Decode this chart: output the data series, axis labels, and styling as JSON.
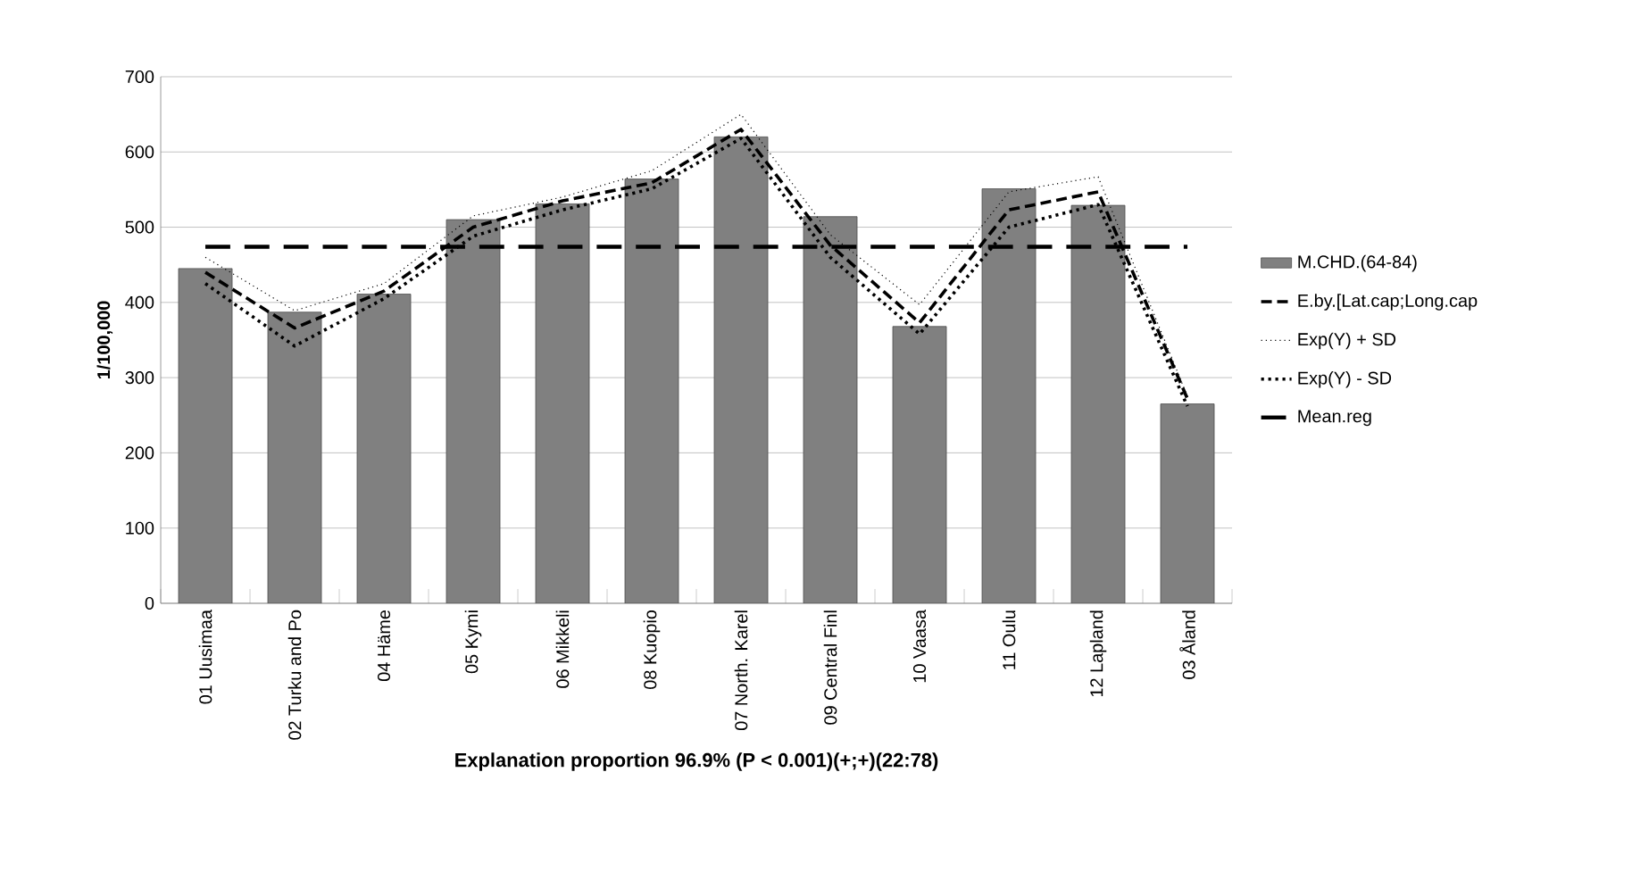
{
  "chart_data": {
    "type": "bar",
    "xlabel": "Explanation proportion 96.9%  (P < 0.001)(+;+)(22:78)",
    "ylabel": "1/100,000",
    "categories": [
      "01 Uusimaa",
      "02 Turku and Po",
      "04 Häme",
      "05 Kymi",
      "06 Mikkeli",
      "08 Kuopio",
      "07 North. Karel",
      "09 Central Finl",
      "10 Vaasa",
      "11 Oulu",
      "12 Lapland",
      "03 Åland"
    ],
    "series": [
      {
        "name": "M.CHD.(64-84)",
        "color": "#808080",
        "values": [
          445,
          387,
          411,
          510,
          531,
          564,
          620,
          514,
          368,
          551,
          529,
          265
        ]
      },
      {
        "name": "E.by.[Lat.cap;Long.cap",
        "type": "line",
        "line_style": "dashed",
        "color": "#000000",
        "values": [
          440,
          366,
          415,
          500,
          535,
          559,
          630,
          476,
          373,
          523,
          547,
          272
        ]
      },
      {
        "name": "Exp(Y) + SD",
        "type": "line",
        "line_style": "dotted",
        "color": "#000000",
        "values": [
          460,
          389,
          425,
          515,
          540,
          575,
          650,
          490,
          397,
          547,
          567,
          275
        ]
      },
      {
        "name": "Exp(Y) - SD",
        "type": "line",
        "line_style": "dotted",
        "color": "#000000",
        "values": [
          425,
          342,
          405,
          488,
          523,
          551,
          618,
          460,
          358,
          500,
          530,
          262
        ]
      }
    ],
    "ref_lines": [
      {
        "axis": "y",
        "value": 474,
        "label": "Mean.reg",
        "color": "#000000",
        "line_style": "dashed"
      }
    ],
    "ylim": [
      0,
      700
    ],
    "yticks": [
      0,
      100,
      200,
      300,
      400,
      500,
      600,
      700
    ],
    "grid": "y",
    "legend": "right",
    "marker": "none"
  }
}
